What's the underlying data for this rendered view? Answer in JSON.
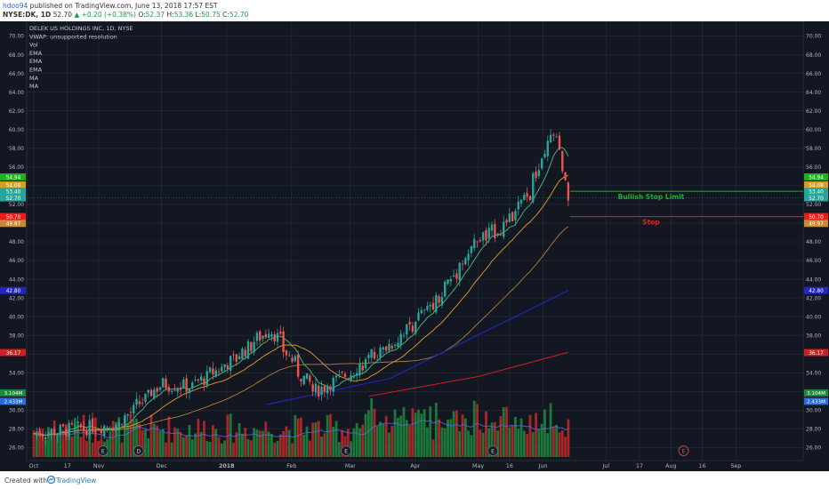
{
  "header": {
    "author": "hdoo94",
    "published": "published on TradingView.com, June 13, 2018 17:57 EST",
    "symbol": "NYSE:DK, 1D",
    "last": "52.70",
    "change": "▲ +0.20 (+0.38%)",
    "o_label": "O:",
    "o_val": "52.37",
    "h_label": "H:",
    "h_val": "53.36",
    "l_label": "L:",
    "l_val": "50.75",
    "c_label": "C:",
    "c_val": "52.70"
  },
  "legend": [
    "DELEK US HOLDINGS INC, 1D, NYSE",
    "VWAP: unsupported resolution",
    "Vol",
    "EMA",
    "EMA",
    "EMA",
    "MA",
    "MA"
  ],
  "footer": {
    "created_with": "Created with",
    "brand": "TradingView"
  },
  "colors": {
    "background": "#131722",
    "grid": "#2a2e39",
    "text": "#b2b5be",
    "up": "#26a69a",
    "down": "#ef5350",
    "vol_up": "#1e8a3e",
    "vol_down": "#c62828",
    "ema_fast": "#4bbf7a",
    "ema_mid": "#e89b2c",
    "ema_slow": "#c48a3a",
    "ma_blue": "#2424c8",
    "ma_red": "#d01f1f",
    "bull_line": "#1db31d",
    "stop_line": "#e81e1e"
  },
  "chart_data": {
    "type": "candlestick",
    "title": "DELEK US HOLDINGS INC, 1D, NYSE",
    "ylim": [
      25,
      71
    ],
    "y_ticks": [
      "26.00",
      "28.00",
      "30.00",
      "32.00",
      "34.00",
      "36.00",
      "38.00",
      "40.00",
      "42.00",
      "44.00",
      "46.00",
      "48.00",
      "50.00",
      "52.00",
      "54.00",
      "56.00",
      "58.00",
      "60.00",
      "62.00",
      "64.00",
      "66.00",
      "68.00",
      "70.00"
    ],
    "x_ticks": [
      "Oct",
      "17",
      "Nov",
      "Dec",
      "2018",
      "Feb",
      "Mar",
      "Apr",
      "May",
      "16",
      "Jun",
      "Jul",
      "17",
      "Aug",
      "16",
      "Sep"
    ],
    "price_anchors": [
      {
        "date": "2017-10-01",
        "close": 27.5
      },
      {
        "date": "2017-11-10",
        "close": 28.5
      },
      {
        "date": "2017-12-01",
        "close": 32.8
      },
      {
        "date": "2017-12-15",
        "close": 32.5
      },
      {
        "date": "2018-01-05",
        "close": 35.5
      },
      {
        "date": "2018-01-22",
        "close": 38.8
      },
      {
        "date": "2018-02-05",
        "close": 34.0
      },
      {
        "date": "2018-02-12",
        "close": 32.0
      },
      {
        "date": "2018-03-01",
        "close": 34.0
      },
      {
        "date": "2018-03-20",
        "close": 37.0
      },
      {
        "date": "2018-04-10",
        "close": 41.5
      },
      {
        "date": "2018-04-30",
        "close": 48.0
      },
      {
        "date": "2018-05-15",
        "close": 50.0
      },
      {
        "date": "2018-05-25",
        "close": 53.0
      },
      {
        "date": "2018-06-06",
        "close": 59.5
      },
      {
        "date": "2018-06-11",
        "close": 55.0
      },
      {
        "date": "2018-06-13",
        "close": 52.7
      }
    ],
    "price_labels": [
      {
        "value": 54.94,
        "label": "54.94",
        "color": "#1db31d"
      },
      {
        "value": 54.08,
        "label": "54.08",
        "color": "#d8a020"
      },
      {
        "value": 53.4,
        "label": "53.40",
        "color": "#26a69a"
      },
      {
        "value": 52.7,
        "label": "52.70",
        "color": "#26a69a"
      },
      {
        "value": 50.7,
        "label": "50.70",
        "color": "#e81e1e"
      },
      {
        "value": 49.97,
        "label": "49.97",
        "color": "#c48a3a"
      },
      {
        "value": 42.8,
        "label": "42.80",
        "color": "#2424c8"
      },
      {
        "value": 36.17,
        "label": "36.17",
        "color": "#d01f1f"
      }
    ],
    "volume_labels": [
      {
        "label": "3.104M",
        "color": "#1e8a3e"
      },
      {
        "label": "2.433M",
        "color": "#2a6bd6"
      }
    ],
    "annotations": [
      {
        "label": "Bullish Stop Limit",
        "value": 53.4,
        "color": "#1db31d"
      },
      {
        "label": "Stop",
        "value": 50.7,
        "color": "#e81e1e"
      }
    ],
    "events": [
      {
        "label": "E",
        "date": "2017-11-03"
      },
      {
        "label": "D",
        "date": "2017-11-20"
      },
      {
        "label": "E",
        "date": "2018-02-27"
      },
      {
        "label": "E",
        "date": "2018-05-08"
      },
      {
        "label": "E",
        "date": "2018-08-07"
      }
    ]
  }
}
